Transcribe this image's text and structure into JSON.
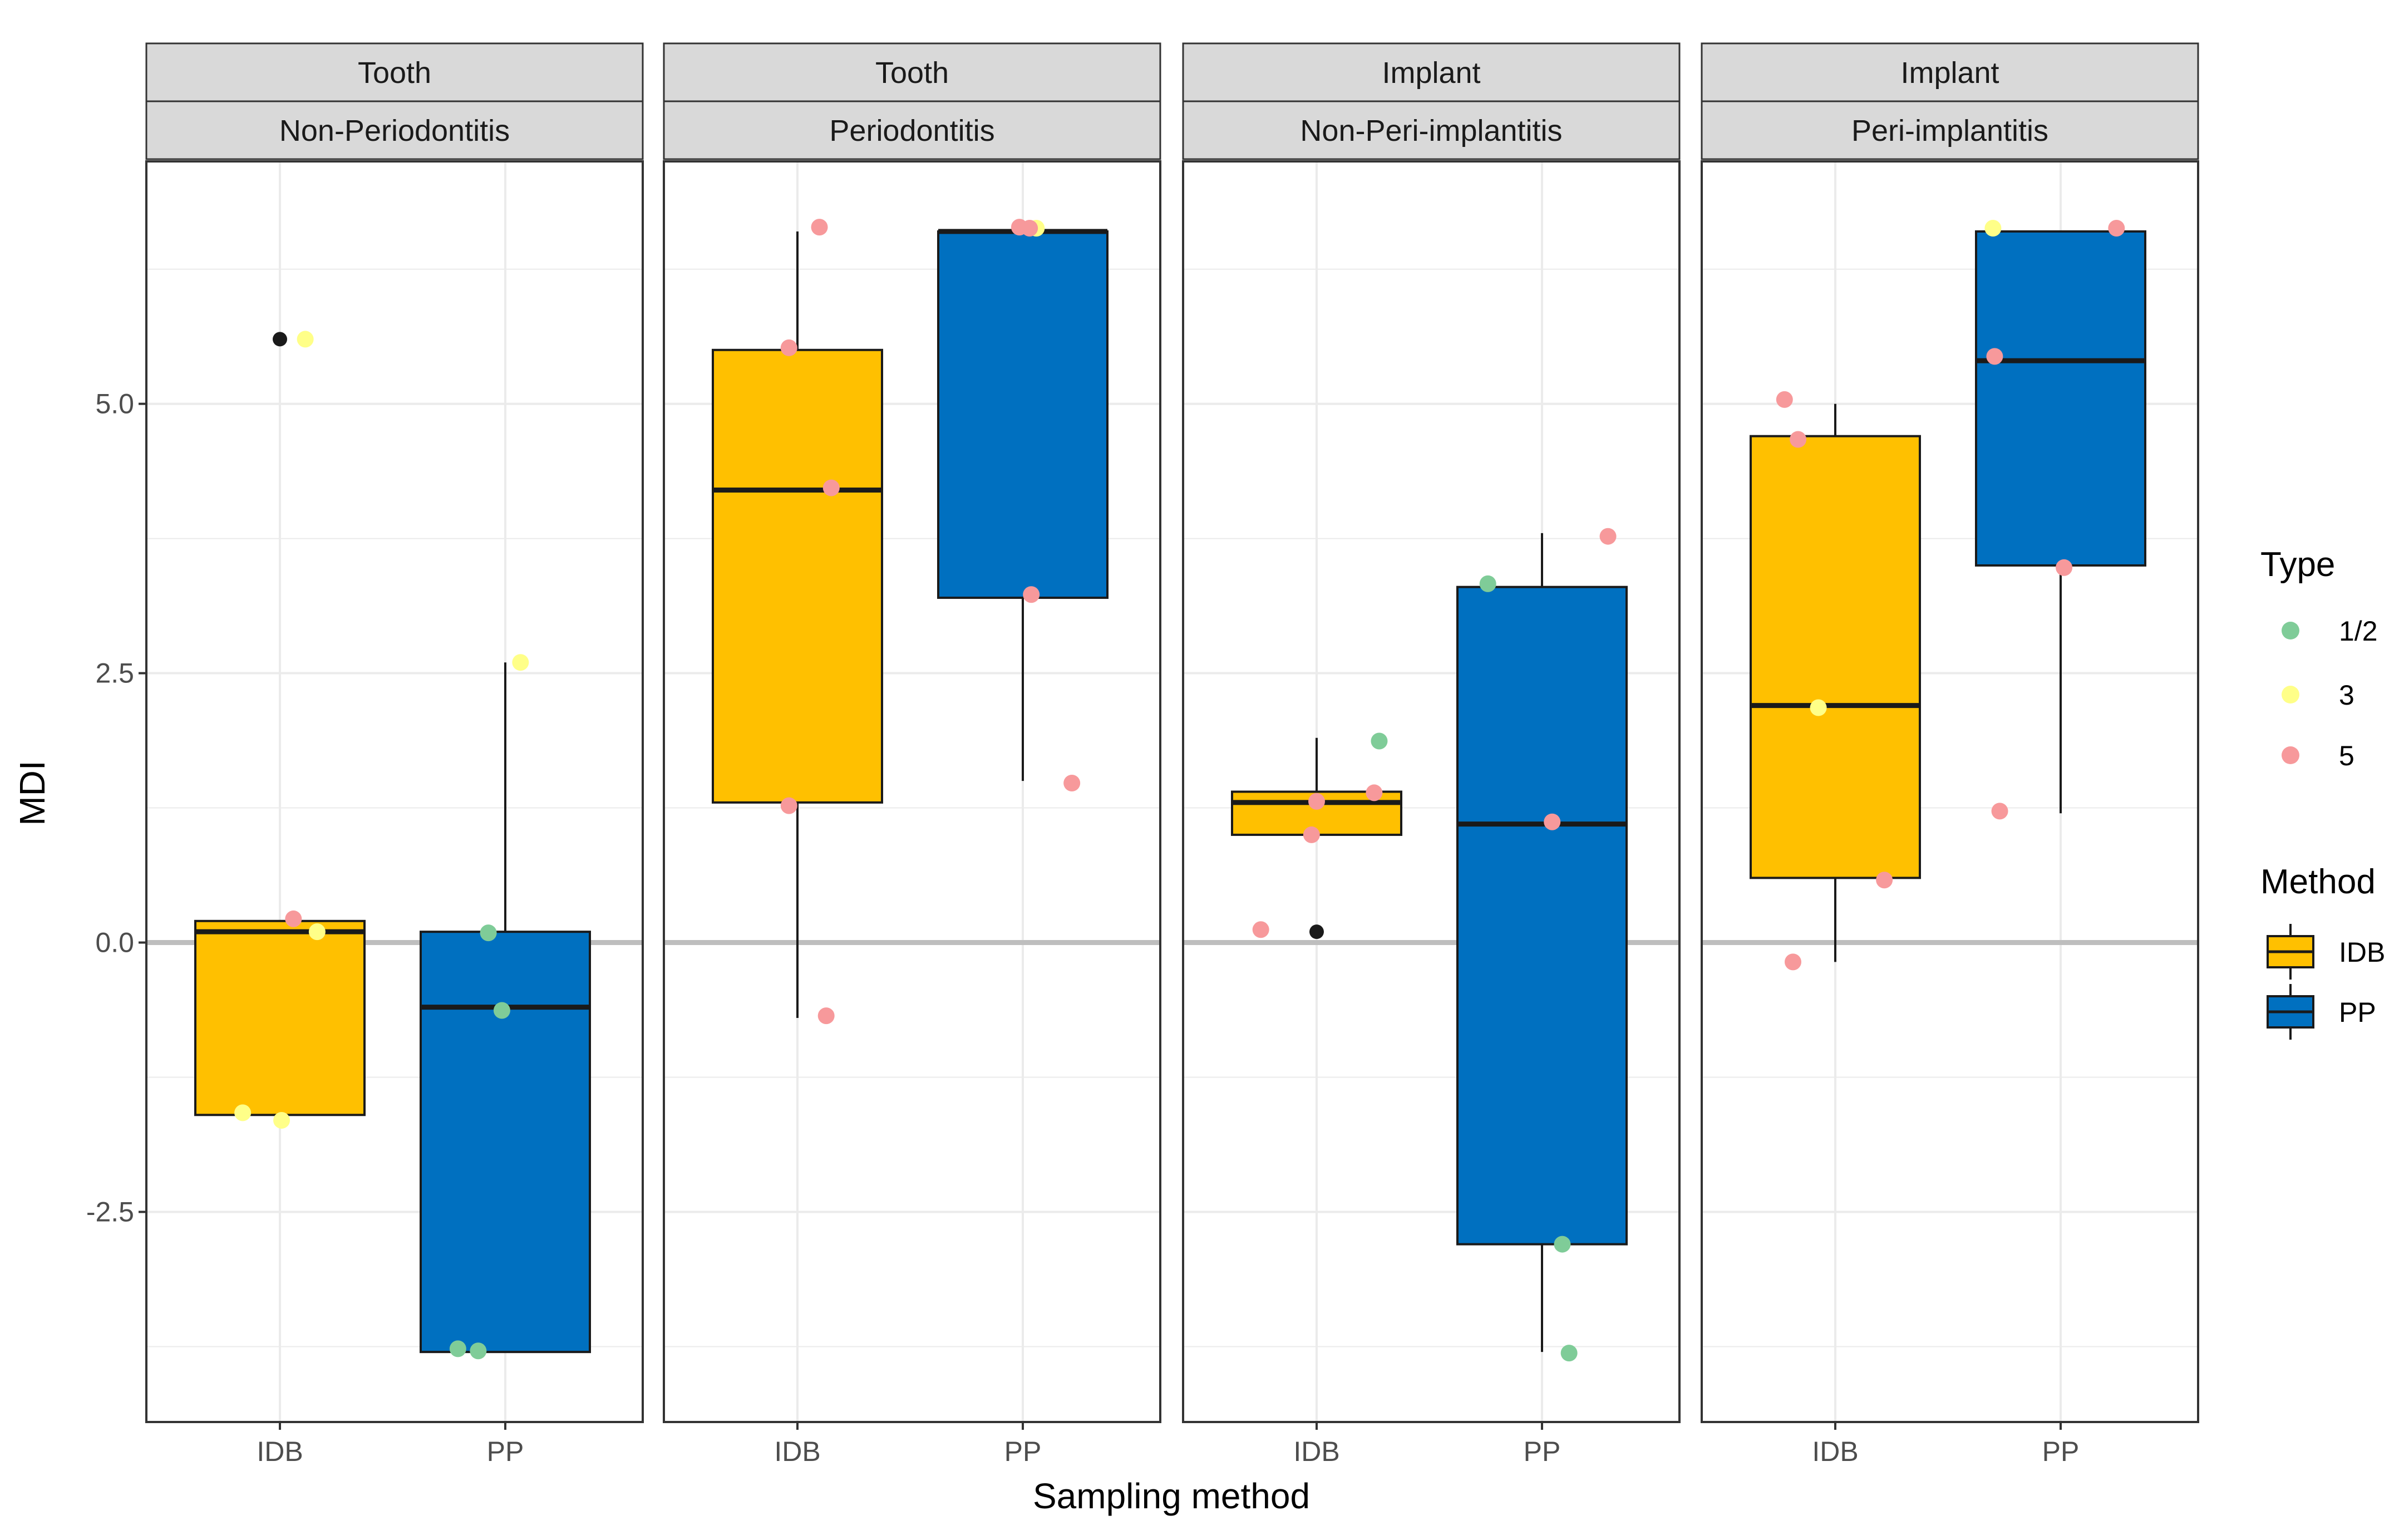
{
  "chart_data": {
    "type": "boxplot",
    "xlabel": "Sampling method",
    "ylabel": "MDI",
    "ylim": [
      -4.45,
      7.25
    ],
    "y_ticks": [
      -2.5,
      0.0,
      2.5,
      5.0
    ],
    "y_tick_labels": [
      "-2.5",
      "0.0",
      "2.5",
      "5.0"
    ],
    "x_categories": [
      "IDB",
      "PP"
    ],
    "reference_line": 0.0,
    "grid": true,
    "colors": {
      "IDB": "#FFC000",
      "PP": "#0070C0",
      "type_1_2": "#7FCC98",
      "type_3": "#FFFF88",
      "type_5": "#F7999B",
      "outlier": "#1a1a1a",
      "strip_fill": "#D9D9D9",
      "grid": "#EBEBEB",
      "refline": "#BEBEBE"
    },
    "legend": {
      "placement": "right",
      "type": {
        "title": "Type",
        "entries": [
          {
            "label": "1/2",
            "color_key": "type_1_2"
          },
          {
            "label": "3",
            "color_key": "type_3"
          },
          {
            "label": "5",
            "color_key": "type_5"
          }
        ]
      },
      "method": {
        "title": "Method",
        "entries": [
          {
            "label": "IDB",
            "color_key": "IDB"
          },
          {
            "label": "PP",
            "color_key": "PP"
          }
        ]
      }
    },
    "panels": [
      {
        "strip_top": "Tooth",
        "strip_bottom": "Non-Periodontitis",
        "boxes": [
          {
            "method": "IDB",
            "q1": -1.6,
            "median": 0.1,
            "q3": 0.2,
            "whisker_low": -1.6,
            "whisker_high": 0.2,
            "outliers": [
              5.6
            ]
          },
          {
            "method": "PP",
            "q1": -3.8,
            "median": -0.6,
            "q3": 0.1,
            "whisker_low": -3.8,
            "whisker_high": 2.6,
            "outliers": []
          }
        ],
        "points": [
          {
            "method": "IDB",
            "jitter": 0.15,
            "y": 5.6,
            "type": "3"
          },
          {
            "method": "IDB",
            "jitter": 0.08,
            "y": 0.22,
            "type": "5"
          },
          {
            "method": "IDB",
            "jitter": 0.22,
            "y": 0.1,
            "type": "3"
          },
          {
            "method": "IDB",
            "jitter": -0.22,
            "y": -1.58,
            "type": "3"
          },
          {
            "method": "IDB",
            "jitter": 0.01,
            "y": -1.65,
            "type": "3"
          },
          {
            "method": "PP",
            "jitter": 0.09,
            "y": 2.6,
            "type": "3"
          },
          {
            "method": "PP",
            "jitter": -0.1,
            "y": 0.09,
            "type": "1/2"
          },
          {
            "method": "PP",
            "jitter": -0.02,
            "y": -0.63,
            "type": "1/2"
          },
          {
            "method": "PP",
            "jitter": -0.28,
            "y": -3.77,
            "type": "1/2"
          },
          {
            "method": "PP",
            "jitter": -0.16,
            "y": -3.79,
            "type": "1/2"
          }
        ]
      },
      {
        "strip_top": "Tooth",
        "strip_bottom": "Periodontitis",
        "boxes": [
          {
            "method": "IDB",
            "q1": 1.3,
            "median": 4.2,
            "q3": 5.5,
            "whisker_low": -0.7,
            "whisker_high": 6.6,
            "outliers": []
          },
          {
            "method": "PP",
            "q1": 3.2,
            "median": 6.6,
            "q3": 6.6,
            "whisker_low": 1.5,
            "whisker_high": 6.6,
            "outliers": []
          }
        ],
        "points": [
          {
            "method": "IDB",
            "jitter": 0.13,
            "y": 6.64,
            "type": "5"
          },
          {
            "method": "IDB",
            "jitter": -0.05,
            "y": 5.52,
            "type": "5"
          },
          {
            "method": "IDB",
            "jitter": 0.2,
            "y": 4.22,
            "type": "5"
          },
          {
            "method": "IDB",
            "jitter": -0.05,
            "y": 1.27,
            "type": "5"
          },
          {
            "method": "IDB",
            "jitter": 0.17,
            "y": -0.68,
            "type": "5"
          },
          {
            "method": "PP",
            "jitter": 0.08,
            "y": 6.63,
            "type": "3"
          },
          {
            "method": "PP",
            "jitter": -0.02,
            "y": 6.64,
            "type": "5"
          },
          {
            "method": "PP",
            "jitter": 0.04,
            "y": 6.63,
            "type": "5"
          },
          {
            "method": "PP",
            "jitter": 0.05,
            "y": 3.23,
            "type": "5"
          },
          {
            "method": "PP",
            "jitter": 0.29,
            "y": 1.48,
            "type": "5"
          }
        ]
      },
      {
        "strip_top": "Implant",
        "strip_bottom": "Non-Peri-implantitis",
        "boxes": [
          {
            "method": "IDB",
            "q1": 1.0,
            "median": 1.3,
            "q3": 1.4,
            "whisker_low": 1.0,
            "whisker_high": 1.9,
            "outliers": [
              0.1
            ]
          },
          {
            "method": "PP",
            "q1": -2.8,
            "median": 1.1,
            "q3": 3.3,
            "whisker_low": -3.8,
            "whisker_high": 3.8,
            "outliers": []
          }
        ],
        "points": [
          {
            "method": "IDB",
            "jitter": 0.37,
            "y": 1.87,
            "type": "1/2"
          },
          {
            "method": "IDB",
            "jitter": 0.34,
            "y": 1.39,
            "type": "5"
          },
          {
            "method": "IDB",
            "jitter": 0.0,
            "y": 1.31,
            "type": "5"
          },
          {
            "method": "IDB",
            "jitter": -0.03,
            "y": 1.0,
            "type": "5"
          },
          {
            "method": "IDB",
            "jitter": -0.33,
            "y": 0.12,
            "type": "5"
          },
          {
            "method": "PP",
            "jitter": -0.32,
            "y": 3.33,
            "type": "1/2"
          },
          {
            "method": "PP",
            "jitter": 0.39,
            "y": 3.77,
            "type": "5"
          },
          {
            "method": "PP",
            "jitter": 0.06,
            "y": 1.12,
            "type": "5"
          },
          {
            "method": "PP",
            "jitter": 0.12,
            "y": -2.8,
            "type": "1/2"
          },
          {
            "method": "PP",
            "jitter": 0.16,
            "y": -3.81,
            "type": "1/2"
          }
        ]
      },
      {
        "strip_top": "Implant",
        "strip_bottom": "Peri-implantitis",
        "boxes": [
          {
            "method": "IDB",
            "q1": 0.6,
            "median": 2.2,
            "q3": 4.7,
            "whisker_low": -0.18,
            "whisker_high": 5.0,
            "outliers": []
          },
          {
            "method": "PP",
            "q1": 3.5,
            "median": 5.4,
            "q3": 6.6,
            "whisker_low": 1.2,
            "whisker_high": 6.6,
            "outliers": []
          }
        ],
        "points": [
          {
            "method": "IDB",
            "jitter": -0.3,
            "y": 5.04,
            "type": "5"
          },
          {
            "method": "IDB",
            "jitter": -0.22,
            "y": 4.67,
            "type": "5"
          },
          {
            "method": "IDB",
            "jitter": -0.1,
            "y": 2.18,
            "type": "3"
          },
          {
            "method": "IDB",
            "jitter": 0.29,
            "y": 0.58,
            "type": "5"
          },
          {
            "method": "IDB",
            "jitter": -0.25,
            "y": -0.18,
            "type": "5"
          },
          {
            "method": "PP",
            "jitter": -0.4,
            "y": 6.63,
            "type": "3"
          },
          {
            "method": "PP",
            "jitter": 0.33,
            "y": 6.63,
            "type": "5"
          },
          {
            "method": "PP",
            "jitter": -0.39,
            "y": 5.44,
            "type": "5"
          },
          {
            "method": "PP",
            "jitter": 0.02,
            "y": 3.48,
            "type": "5"
          },
          {
            "method": "PP",
            "jitter": -0.36,
            "y": 1.22,
            "type": "5"
          }
        ]
      }
    ]
  }
}
